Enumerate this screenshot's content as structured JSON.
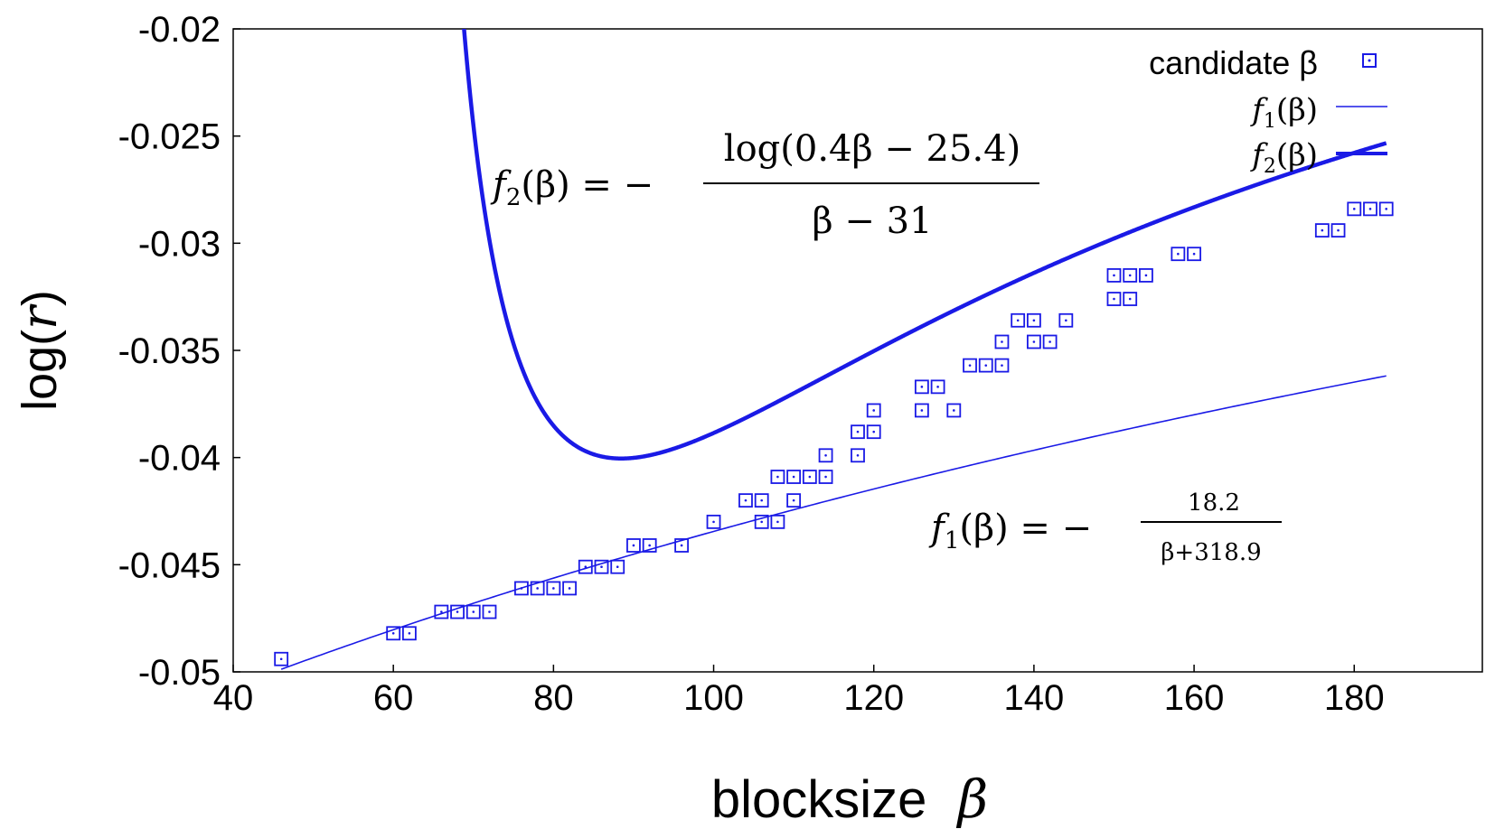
{
  "chart_data": {
    "type": "scatter",
    "xlabel": "blocksize",
    "xlabel_symbol": "β",
    "ylabel": "log(",
    "ylabel_var": "r",
    "ylabel_close": ")",
    "xlim": [
      40,
      196
    ],
    "ylim": [
      -0.05,
      -0.02
    ],
    "xticks": [
      40,
      60,
      80,
      100,
      120,
      140,
      160,
      180
    ],
    "xtick_labels": [
      "40",
      "60",
      "80",
      "100",
      "120",
      "140",
      "160",
      "180"
    ],
    "yticks": [
      -0.05,
      -0.045,
      -0.04,
      -0.035,
      -0.03,
      -0.025,
      -0.02
    ],
    "ytick_labels": [
      "-0.05",
      "-0.045",
      "-0.04",
      "-0.035",
      "-0.03",
      "-0.025",
      "-0.02"
    ],
    "grid": false,
    "legend_position": "top-right",
    "colors": {
      "series": "#1a1ae6",
      "axis": "#000000"
    },
    "series": [
      {
        "name": "candidate β",
        "kind": "points",
        "points": [
          [
            46,
            -0.0494
          ],
          [
            60,
            -0.0482
          ],
          [
            62,
            -0.0482
          ],
          [
            66,
            -0.0472
          ],
          [
            68,
            -0.0472
          ],
          [
            70,
            -0.0472
          ],
          [
            72,
            -0.0472
          ],
          [
            76,
            -0.0461
          ],
          [
            78,
            -0.0461
          ],
          [
            80,
            -0.0461
          ],
          [
            82,
            -0.0461
          ],
          [
            84,
            -0.0451
          ],
          [
            86,
            -0.0451
          ],
          [
            88,
            -0.0451
          ],
          [
            90,
            -0.0441
          ],
          [
            92,
            -0.0441
          ],
          [
            96,
            -0.0441
          ],
          [
            100,
            -0.043
          ],
          [
            104,
            -0.042
          ],
          [
            106,
            -0.042
          ],
          [
            106,
            -0.043
          ],
          [
            108,
            -0.043
          ],
          [
            108,
            -0.0409
          ],
          [
            110,
            -0.0409
          ],
          [
            110,
            -0.042
          ],
          [
            112,
            -0.0409
          ],
          [
            114,
            -0.0409
          ],
          [
            114,
            -0.0399
          ],
          [
            118,
            -0.0399
          ],
          [
            118,
            -0.0388
          ],
          [
            120,
            -0.0388
          ],
          [
            120,
            -0.0378
          ],
          [
            126,
            -0.0378
          ],
          [
            126,
            -0.0367
          ],
          [
            128,
            -0.0367
          ],
          [
            130,
            -0.0378
          ],
          [
            132,
            -0.0357
          ],
          [
            134,
            -0.0357
          ],
          [
            136,
            -0.0357
          ],
          [
            136,
            -0.0346
          ],
          [
            138,
            -0.0336
          ],
          [
            140,
            -0.0336
          ],
          [
            140,
            -0.0346
          ],
          [
            142,
            -0.0346
          ],
          [
            144,
            -0.0336
          ],
          [
            150,
            -0.0315
          ],
          [
            152,
            -0.0315
          ],
          [
            154,
            -0.0315
          ],
          [
            150,
            -0.0326
          ],
          [
            152,
            -0.0326
          ],
          [
            158,
            -0.0305
          ],
          [
            160,
            -0.0305
          ],
          [
            176,
            -0.0294
          ],
          [
            178,
            -0.0294
          ],
          [
            180,
            -0.0284
          ],
          [
            182,
            -0.0284
          ],
          [
            184,
            -0.0284
          ]
        ]
      },
      {
        "name": "f1(β)",
        "legend_func": "f",
        "legend_sub": "1",
        "legend_arg": "(β)",
        "kind": "line",
        "line_weight": "thin",
        "x_range": [
          46,
          184
        ]
      },
      {
        "name": "f2(β)",
        "legend_func": "f",
        "legend_sub": "2",
        "legend_arg": "(β)",
        "kind": "line",
        "line_weight": "thick",
        "x_range": [
          66,
          184
        ]
      }
    ],
    "annotations": {
      "f2": {
        "lhs_func": "f",
        "lhs_sub": "2",
        "lhs_arg": "(β) = −",
        "numerator": "log(0.4β − 25.4)",
        "denominator": "β − 31"
      },
      "f1": {
        "lhs_func": "f",
        "lhs_sub": "1",
        "lhs_arg": "(β) = −",
        "numerator": "18.2",
        "denominator": "β+318.9"
      }
    }
  }
}
